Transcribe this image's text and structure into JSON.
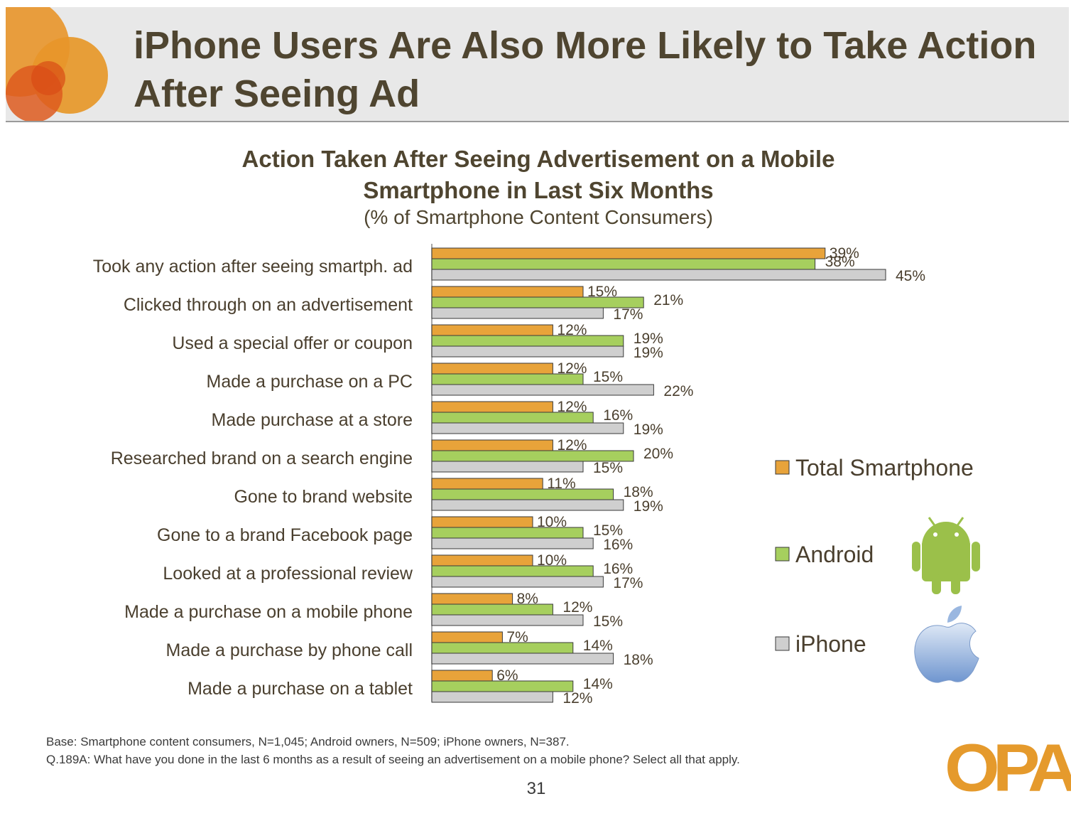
{
  "slide": {
    "title": "iPhone Users Are Also More Likely to Take Action After Seeing Ad",
    "page_number": "31",
    "logo_text": "OPA"
  },
  "footnotes": {
    "base": "Base: Smartphone content consumers, N=1,045; Android owners, N=509; iPhone owners, N=387.",
    "question": "Q.189A: What have you done in the last 6 months as a result of seeing an advertisement on a mobile phone?  Select all that apply."
  },
  "colors": {
    "total": "#e8a33a",
    "android": "#a6cf5e",
    "iphone": "#cfcfcf",
    "accent_orange": "#e59a2c",
    "android_robot": "#9bc04a",
    "apple_logo": "#8fb2e0"
  },
  "chart_data": {
    "type": "bar",
    "orientation": "horizontal",
    "title": "Action Taken After Seeing Advertisement on a Mobile Smartphone in Last Six Months",
    "subtitle": "(% of Smartphone Content Consumers)",
    "unit": "%",
    "xlim": [
      0,
      50
    ],
    "grid": false,
    "legend_position": "right",
    "categories": [
      "Took any action after seeing smartph. ad",
      "Clicked through on an advertisement",
      "Used a special offer or coupon",
      "Made a purchase on a PC",
      "Made purchase at a store",
      "Researched brand on a search engine",
      "Gone to brand website",
      "Gone to a brand Facebook page",
      "Looked at a professional review",
      "Made a purchase on a mobile phone",
      "Made a purchase by phone call",
      "Made a purchase on a tablet"
    ],
    "series": [
      {
        "name": "Total Smartphone",
        "values": [
          39,
          15,
          12,
          12,
          12,
          12,
          11,
          10,
          10,
          8,
          7,
          6
        ]
      },
      {
        "name": "Android",
        "values": [
          38,
          21,
          19,
          15,
          16,
          20,
          18,
          15,
          16,
          12,
          14,
          14
        ]
      },
      {
        "name": "iPhone",
        "values": [
          45,
          17,
          19,
          22,
          19,
          15,
          19,
          16,
          17,
          15,
          18,
          12
        ]
      }
    ]
  }
}
